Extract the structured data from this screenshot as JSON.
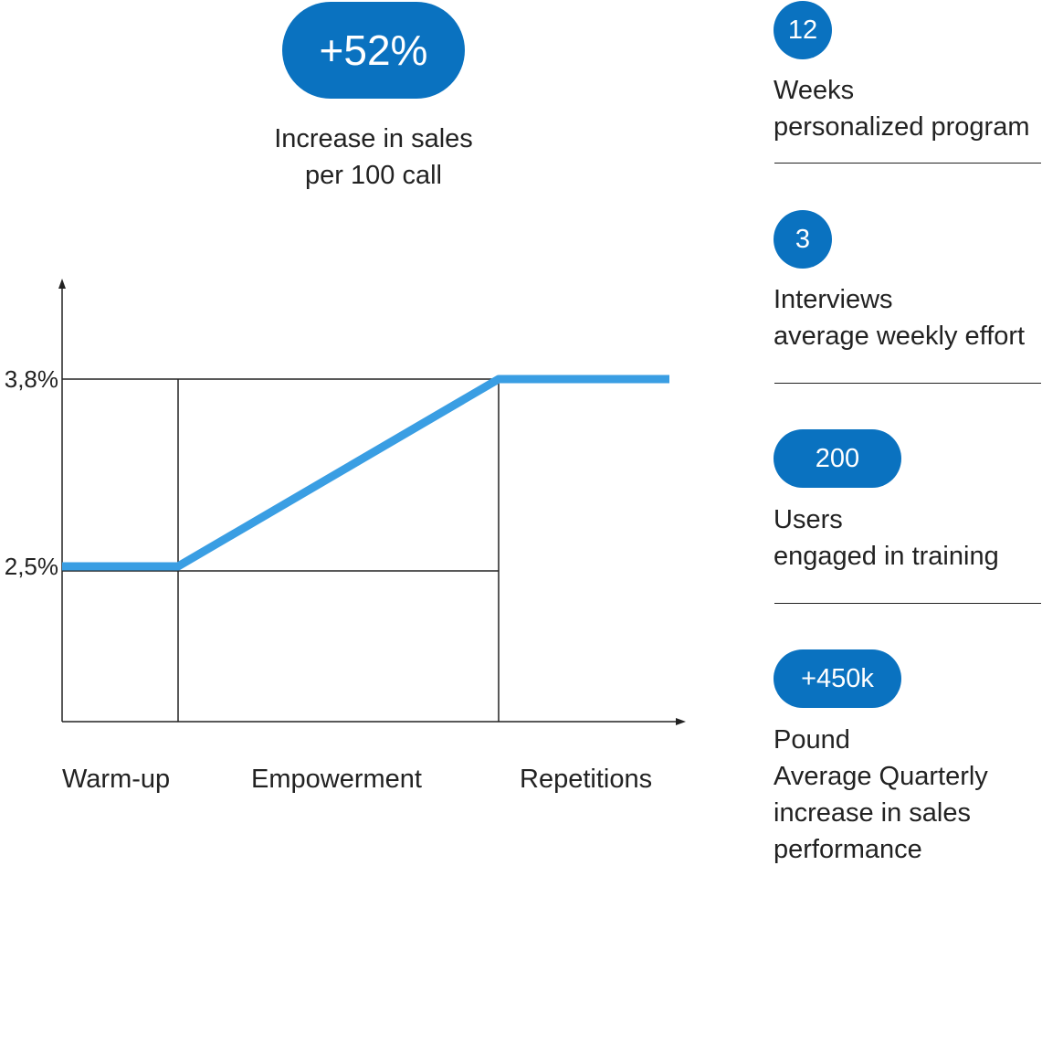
{
  "headline": {
    "value": "+52%",
    "caption_line1": "Increase in sales",
    "caption_line2": "per 100 call"
  },
  "chart_data": {
    "type": "line",
    "phases": [
      "Warm-up",
      "Empowerment",
      "Repetitions"
    ],
    "y_ticks": [
      "2,5%",
      "3,8%"
    ],
    "series": [
      {
        "points": [
          {
            "phase": "Warm-up",
            "position": "start",
            "value": 2.5
          },
          {
            "phase": "Warm-up",
            "position": "end",
            "value": 2.5
          },
          {
            "phase": "Empowerment",
            "position": "end",
            "value": 3.8
          },
          {
            "phase": "Repetitions",
            "position": "end",
            "value": 3.8
          }
        ]
      }
    ],
    "grid": true,
    "line_color": "#3a9ee3",
    "axis_color": "#222222"
  },
  "stats": [
    {
      "value": "12",
      "line1": "Weeks",
      "line2": "personalized program"
    },
    {
      "value": "3",
      "line1": "Interviews",
      "line2": "average weekly effort"
    },
    {
      "value": "200",
      "line1": "Users",
      "line2": "engaged in training"
    },
    {
      "value": "+450k",
      "line1": "Pound",
      "line2": "Average Quarterly",
      "line3": "increase in sales",
      "line4": "performance"
    }
  ],
  "colors": {
    "accent": "#0a72c0",
    "line": "#3a9ee3"
  }
}
